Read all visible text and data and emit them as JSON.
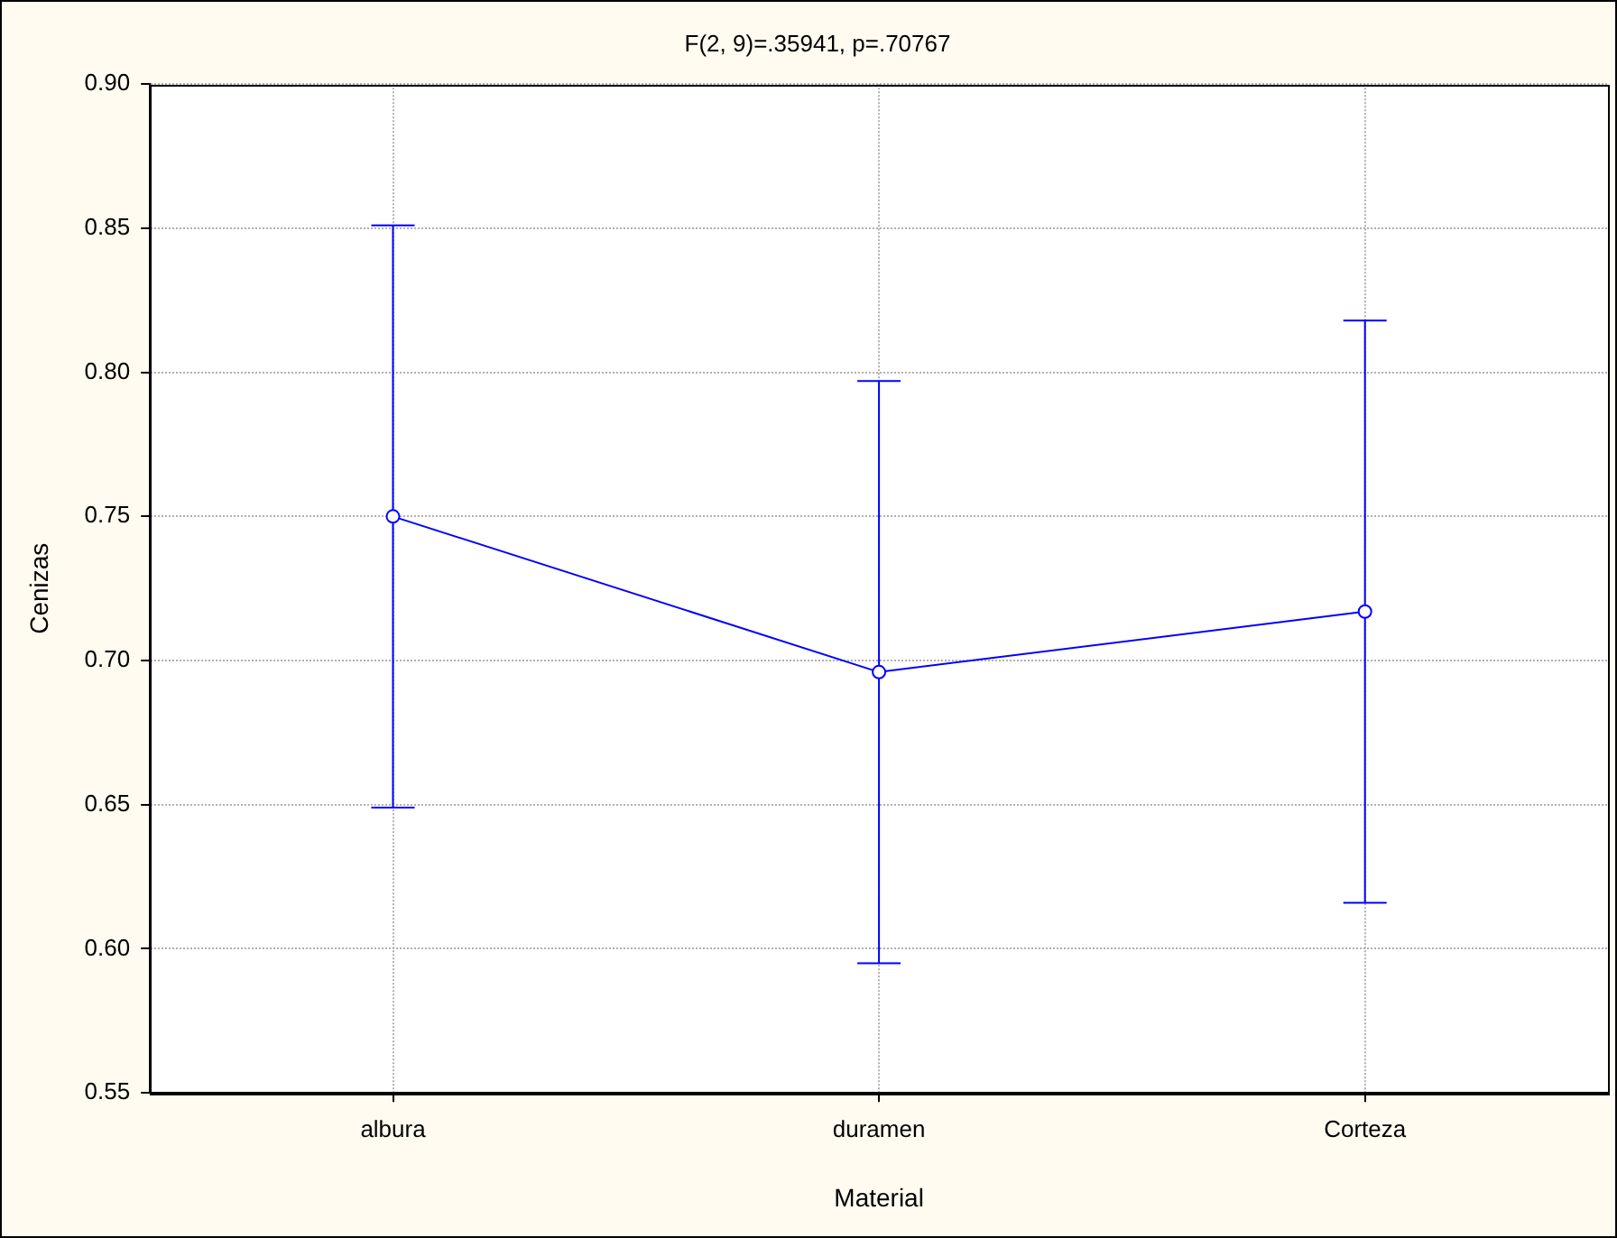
{
  "chart_data": {
    "type": "line",
    "title": "F(2, 9)=.35941, p=.70767",
    "xlabel": "Material",
    "ylabel": "Cenizas",
    "categories": [
      "albura",
      "duramen",
      "Corteza"
    ],
    "series": [
      {
        "color": "#0000ff",
        "values": [
          0.75,
          0.696,
          0.717
        ],
        "errors": [
          0.101,
          0.101,
          0.101
        ]
      }
    ],
    "ylim": [
      0.55,
      0.9
    ],
    "yticks": [
      {
        "value": 0.55,
        "label": "0.55"
      },
      {
        "value": 0.6,
        "label": "0.60"
      },
      {
        "value": 0.65,
        "label": "0.65"
      },
      {
        "value": 0.7,
        "label": "0.70"
      },
      {
        "value": 0.75,
        "label": "0.75"
      },
      {
        "value": 0.8,
        "label": "0.80"
      },
      {
        "value": 0.85,
        "label": "0.85"
      },
      {
        "value": 0.9,
        "label": "0.90"
      }
    ],
    "grid": true,
    "legend": false,
    "marker": "circle",
    "line_style": "solid"
  }
}
